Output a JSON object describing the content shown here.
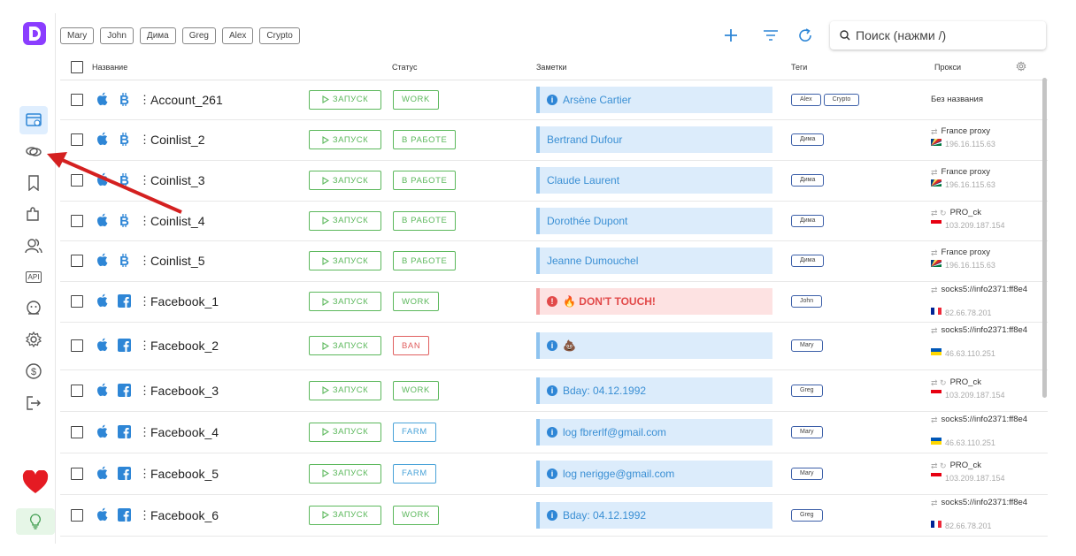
{
  "filter_chips": [
    "Mary",
    "John",
    "Дима",
    "Greg",
    "Alex",
    "Crypto"
  ],
  "search": {
    "placeholder": "Поиск (нажми /)"
  },
  "columns": {
    "name": "Название",
    "status": "Статус",
    "notes": "Заметки",
    "tags": "Теги",
    "proxy": "Прокси"
  },
  "launch_label": "ЗАПУСК",
  "sidebar": {
    "icons": [
      "browser-icon",
      "chain-link-icon",
      "bookmark-icon",
      "puzzle-icon",
      "users-icon",
      "api-icon",
      "robot-icon",
      "settings-icon",
      "dollar-icon",
      "logout-icon"
    ],
    "api_label": "API"
  },
  "colors": {
    "accent": "#8b3dff",
    "green": "#5cb85c",
    "blue": "#2e86d6",
    "red": "#e24a4a",
    "annotation_arrow": "#d42020"
  },
  "rows": [
    {
      "name": "Account_261",
      "brand": "bitcoin",
      "status": "WORK",
      "status_type": "work",
      "note": "Arsène Cartier",
      "note_icon": "info",
      "tags": [
        "Alex",
        "Crypto"
      ],
      "proxy_name": "Без названия",
      "proxy_ip": "",
      "proxy_icons": "",
      "flag": ""
    },
    {
      "name": "Coinlist_2",
      "brand": "bitcoin",
      "status": "В РАБОТЕ",
      "status_type": "work",
      "note": "Bertrand Dufour",
      "note_icon": "",
      "tags": [
        "Дима"
      ],
      "proxy_name": "France proxy",
      "proxy_ip": "196.16.115.63",
      "proxy_icons": "⇄",
      "flag": "sc"
    },
    {
      "name": "Coinlist_3",
      "brand": "bitcoin",
      "status": "В РАБОТЕ",
      "status_type": "work",
      "note": "Claude Laurent",
      "note_icon": "",
      "tags": [
        "Дима"
      ],
      "proxy_name": "France proxy",
      "proxy_ip": "196.16.115.63",
      "proxy_icons": "⇄",
      "flag": "sc"
    },
    {
      "name": "Coinlist_4",
      "brand": "bitcoin",
      "status": "В РАБОТЕ",
      "status_type": "work",
      "note": "Dorothée Dupont",
      "note_icon": "",
      "tags": [
        "Дима"
      ],
      "proxy_name": "PRO_ck",
      "proxy_ip": "103.209.187.154",
      "proxy_icons": "⇄ ↻",
      "flag": "id"
    },
    {
      "name": "Coinlist_5",
      "brand": "bitcoin",
      "status": "В РАБОТЕ",
      "status_type": "work",
      "note": "Jeanne Dumouchel",
      "note_icon": "",
      "tags": [
        "Дима"
      ],
      "proxy_name": "France proxy",
      "proxy_ip": "196.16.115.63",
      "proxy_icons": "⇄",
      "flag": "sc"
    },
    {
      "name": "Facebook_1",
      "brand": "facebook",
      "status": "WORK",
      "status_type": "work",
      "note": "🔥 DON'T TOUCH!",
      "note_icon": "warn",
      "tags": [
        "John"
      ],
      "proxy_name": "socks5://info2371:ff8e4",
      "proxy_ip": "82.66.78.201",
      "proxy_icons": "⇄",
      "flag": "fr"
    },
    {
      "name": "Facebook_2",
      "brand": "facebook",
      "status": "BAN",
      "status_type": "ban",
      "note": "💩",
      "note_icon": "info",
      "tags": [
        "Mary"
      ],
      "proxy_name": "socks5://info2371:ff8e4",
      "proxy_ip": "46.63.110.251",
      "proxy_icons": "⇄",
      "flag": "ua"
    },
    {
      "name": "Facebook_3",
      "brand": "facebook",
      "status": "WORK",
      "status_type": "work",
      "note": "Bday: 04.12.1992",
      "note_icon": "info",
      "tags": [
        "Greg"
      ],
      "proxy_name": "PRO_ck",
      "proxy_ip": "103.209.187.154",
      "proxy_icons": "⇄ ↻",
      "flag": "id"
    },
    {
      "name": "Facebook_4",
      "brand": "facebook",
      "status": "FARM",
      "status_type": "farm",
      "note": "log fbrerlf@gmail.com",
      "note_icon": "info",
      "tags": [
        "Mary"
      ],
      "proxy_name": "socks5://info2371:ff8e4",
      "proxy_ip": "46.63.110.251",
      "proxy_icons": "⇄",
      "flag": "ua"
    },
    {
      "name": "Facebook_5",
      "brand": "facebook",
      "status": "FARM",
      "status_type": "farm",
      "note": "log nerigge@gmail.com",
      "note_icon": "info",
      "tags": [
        "Mary"
      ],
      "proxy_name": "PRO_ck",
      "proxy_ip": "103.209.187.154",
      "proxy_icons": "⇄ ↻",
      "flag": "id"
    },
    {
      "name": "Facebook_6",
      "brand": "facebook",
      "status": "WORK",
      "status_type": "work",
      "note": "Bday: 04.12.1992",
      "note_icon": "info",
      "tags": [
        "Greg"
      ],
      "proxy_name": "socks5://info2371:ff8e4",
      "proxy_ip": "82.66.78.201",
      "proxy_icons": "⇄",
      "flag": "fr"
    }
  ]
}
